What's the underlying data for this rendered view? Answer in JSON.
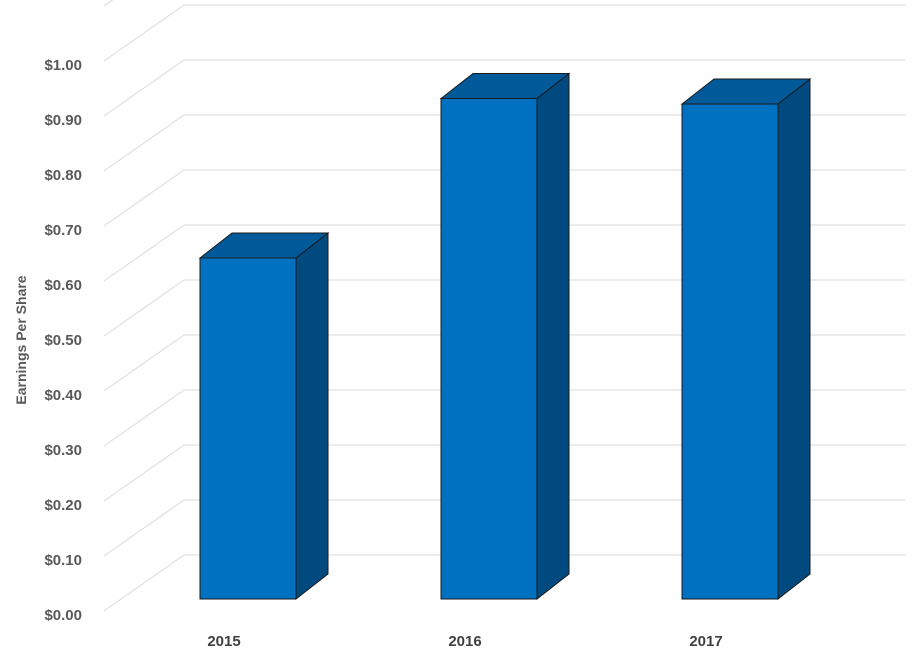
{
  "chart_data": {
    "type": "bar",
    "categories": [
      "2015",
      "2016",
      "2017"
    ],
    "values": [
      0.62,
      0.91,
      0.9
    ],
    "title": "",
    "xlabel": "",
    "ylabel": "Earnings Per Share",
    "ylim": [
      0,
      1.1
    ],
    "yticks": [
      "$0.00",
      "$0.10",
      "$0.20",
      "$0.30",
      "$0.40",
      "$0.50",
      "$0.60",
      "$0.70",
      "$0.80",
      "$0.90",
      "$1.00"
    ],
    "ytick_values": [
      0,
      0.1,
      0.2,
      0.3,
      0.4,
      0.5,
      0.6,
      0.7,
      0.8,
      0.9,
      1.0
    ],
    "grid": true,
    "legend": "none",
    "style": "3d-column",
    "colors": {
      "front": "#0070c0",
      "side": "#004a80",
      "top": "#005a9a",
      "grid": "#d9d9d9"
    }
  }
}
